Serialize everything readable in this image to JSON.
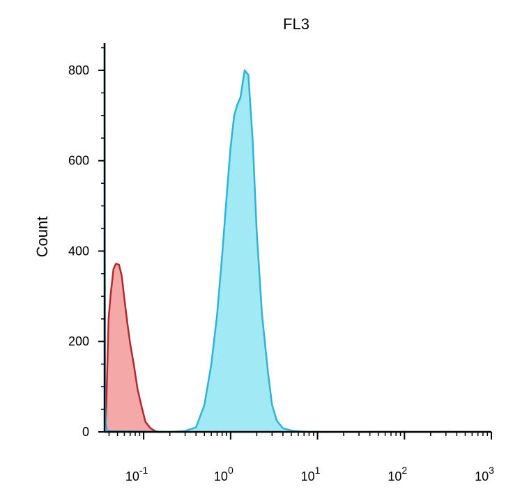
{
  "chart_data": {
    "type": "area",
    "title": "FL3",
    "xlabel": "",
    "ylabel": "Count",
    "x_scale": "log",
    "xlim": [
      0.0355,
      1000
    ],
    "ylim": [
      0,
      860
    ],
    "y_ticks": [
      0,
      200,
      400,
      600,
      800
    ],
    "x_ticks": [
      {
        "value": 0.1,
        "base": "10",
        "exp": "-1"
      },
      {
        "value": 1,
        "base": "10",
        "exp": "0"
      },
      {
        "value": 10,
        "base": "10",
        "exp": "1"
      },
      {
        "value": 100,
        "base": "10",
        "exp": "2"
      },
      {
        "value": 1000,
        "base": "10",
        "exp": "3"
      }
    ],
    "grid": false,
    "series": [
      {
        "color": "#f4a3a3",
        "stroke": "#b3282d",
        "x": [
          0.0365,
          0.0395,
          0.0415,
          0.045,
          0.048,
          0.052,
          0.056,
          0.06,
          0.065,
          0.07,
          0.077,
          0.085,
          0.095,
          0.105,
          0.12,
          0.135,
          0.15,
          0.165
        ],
        "y": [
          0,
          250,
          300,
          360,
          372,
          370,
          345,
          295,
          240,
          195,
          150,
          95,
          55,
          22,
          8,
          2,
          0,
          0
        ]
      },
      {
        "color": "#9de8f5",
        "stroke": "#2bb3d8",
        "x": [
          0.0355,
          0.036,
          0.037,
          0.038,
          0.2,
          0.3,
          0.4,
          0.5,
          0.6,
          0.7,
          0.8,
          0.9,
          1.0,
          1.1,
          1.2,
          1.3,
          1.45,
          1.6,
          1.8,
          2.0,
          2.3,
          2.7,
          3.0,
          3.4,
          4.0,
          5.0,
          6.5,
          8.0,
          10,
          20,
          100,
          1000
        ],
        "y": [
          900,
          60,
          15,
          2,
          0,
          2,
          10,
          60,
          150,
          260,
          390,
          520,
          630,
          700,
          725,
          740,
          800,
          790,
          640,
          440,
          260,
          130,
          60,
          25,
          8,
          3,
          1,
          0,
          0,
          0,
          0,
          0
        ]
      }
    ]
  }
}
